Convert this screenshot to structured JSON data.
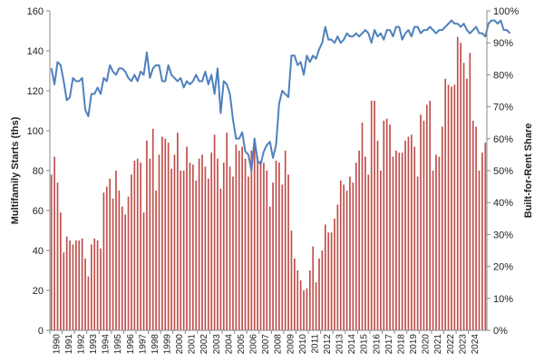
{
  "chart_data": {
    "type": "bar",
    "title": "",
    "xlabel": "",
    "ylabel": "Multifamily Starts (ths)",
    "y2label": "Built-for-Rent Share",
    "ylim": [
      0,
      160
    ],
    "y2lim": [
      0,
      1
    ],
    "yticks": [
      "0",
      "20",
      "40",
      "60",
      "80",
      "100",
      "120",
      "140",
      "160"
    ],
    "y2ticks": [
      "0%",
      "10%",
      "20%",
      "30%",
      "40%",
      "50%",
      "60%",
      "70%",
      "80%",
      "90%",
      "100%"
    ],
    "grid": false,
    "legend": "none",
    "colors": {
      "bars": "#c0504d",
      "line": "#4f81bd"
    },
    "years": [
      "1990",
      "1991",
      "1992",
      "1993",
      "1994",
      "1995",
      "1996",
      "1997",
      "1998",
      "1999",
      "2000",
      "2001",
      "2002",
      "2003",
      "2004",
      "2005",
      "2006",
      "2007",
      "2008",
      "2009",
      "2010",
      "2011",
      "2012",
      "2013",
      "2014",
      "2015",
      "2016",
      "2017",
      "2018",
      "2019",
      "2020",
      "2021",
      "2022",
      "2023",
      "2024"
    ],
    "series": [
      {
        "type": "bar",
        "axis": "left",
        "values": [
          78,
          87,
          74,
          59,
          39,
          47,
          45,
          43,
          45,
          45,
          46,
          36,
          27,
          43,
          46,
          45,
          41,
          69,
          72,
          76,
          66,
          80,
          70,
          62,
          58,
          67,
          78,
          85,
          86,
          84,
          59,
          95,
          86,
          101,
          70,
          88,
          97,
          96,
          94,
          81,
          88,
          99,
          80,
          80,
          92,
          84,
          83,
          75,
          86,
          88,
          82,
          76,
          89,
          98,
          86,
          71,
          84,
          99,
          82,
          77,
          93,
          90,
          92,
          86,
          77,
          90,
          94,
          87,
          85,
          84,
          80,
          62,
          74,
          85,
          84,
          73,
          90,
          78,
          50,
          36,
          30,
          25,
          20,
          21,
          30,
          42,
          24,
          36,
          40,
          53,
          49,
          49,
          56,
          63,
          75,
          73,
          70,
          77,
          74,
          84,
          90,
          104,
          87,
          78,
          115,
          115,
          95,
          80,
          105,
          106,
          103,
          87,
          90,
          89,
          89,
          95,
          97,
          98,
          92,
          77,
          108,
          105,
          113,
          115,
          80,
          88,
          87,
          102,
          126,
          123,
          122,
          123,
          147,
          144,
          134,
          126,
          139,
          105,
          102,
          80,
          89,
          94
        ]
      },
      {
        "type": "line",
        "axis": "right",
        "values": [
          0.82,
          0.77,
          0.84,
          0.83,
          0.78,
          0.72,
          0.73,
          0.79,
          0.78,
          0.78,
          0.79,
          0.69,
          0.67,
          0.74,
          0.74,
          0.76,
          0.74,
          0.79,
          0.78,
          0.83,
          0.81,
          0.8,
          0.82,
          0.82,
          0.81,
          0.79,
          0.78,
          0.8,
          0.78,
          0.81,
          0.8,
          0.87,
          0.79,
          0.82,
          0.83,
          0.83,
          0.78,
          0.78,
          0.83,
          0.8,
          0.79,
          0.78,
          0.79,
          0.76,
          0.78,
          0.77,
          0.78,
          0.8,
          0.78,
          0.78,
          0.81,
          0.77,
          0.8,
          0.74,
          0.82,
          0.68,
          0.78,
          0.77,
          0.74,
          0.66,
          0.6,
          0.6,
          0.62,
          0.56,
          0.55,
          0.5,
          0.6,
          0.53,
          0.52,
          0.56,
          0.58,
          0.59,
          0.54,
          0.58,
          0.71,
          0.75,
          0.74,
          0.73,
          0.86,
          0.86,
          0.83,
          0.84,
          0.8,
          0.86,
          0.84,
          0.86,
          0.85,
          0.88,
          0.9,
          0.95,
          0.91,
          0.91,
          0.9,
          0.92,
          0.9,
          0.91,
          0.93,
          0.92,
          0.92,
          0.93,
          0.92,
          0.93,
          0.94,
          0.93,
          0.9,
          0.94,
          0.92,
          0.93,
          0.91,
          0.94,
          0.94,
          0.92,
          0.95,
          0.95,
          0.91,
          0.93,
          0.94,
          0.92,
          0.95,
          0.95,
          0.93,
          0.94,
          0.94,
          0.95,
          0.94,
          0.93,
          0.94,
          0.94,
          0.95,
          0.96,
          0.97,
          0.96,
          0.96,
          0.95,
          0.96,
          0.94,
          0.93,
          0.94,
          0.95,
          0.93,
          0.93,
          0.92,
          0.96,
          0.97,
          0.97,
          0.96,
          0.97,
          0.94,
          0.94,
          0.93
        ]
      }
    ]
  }
}
